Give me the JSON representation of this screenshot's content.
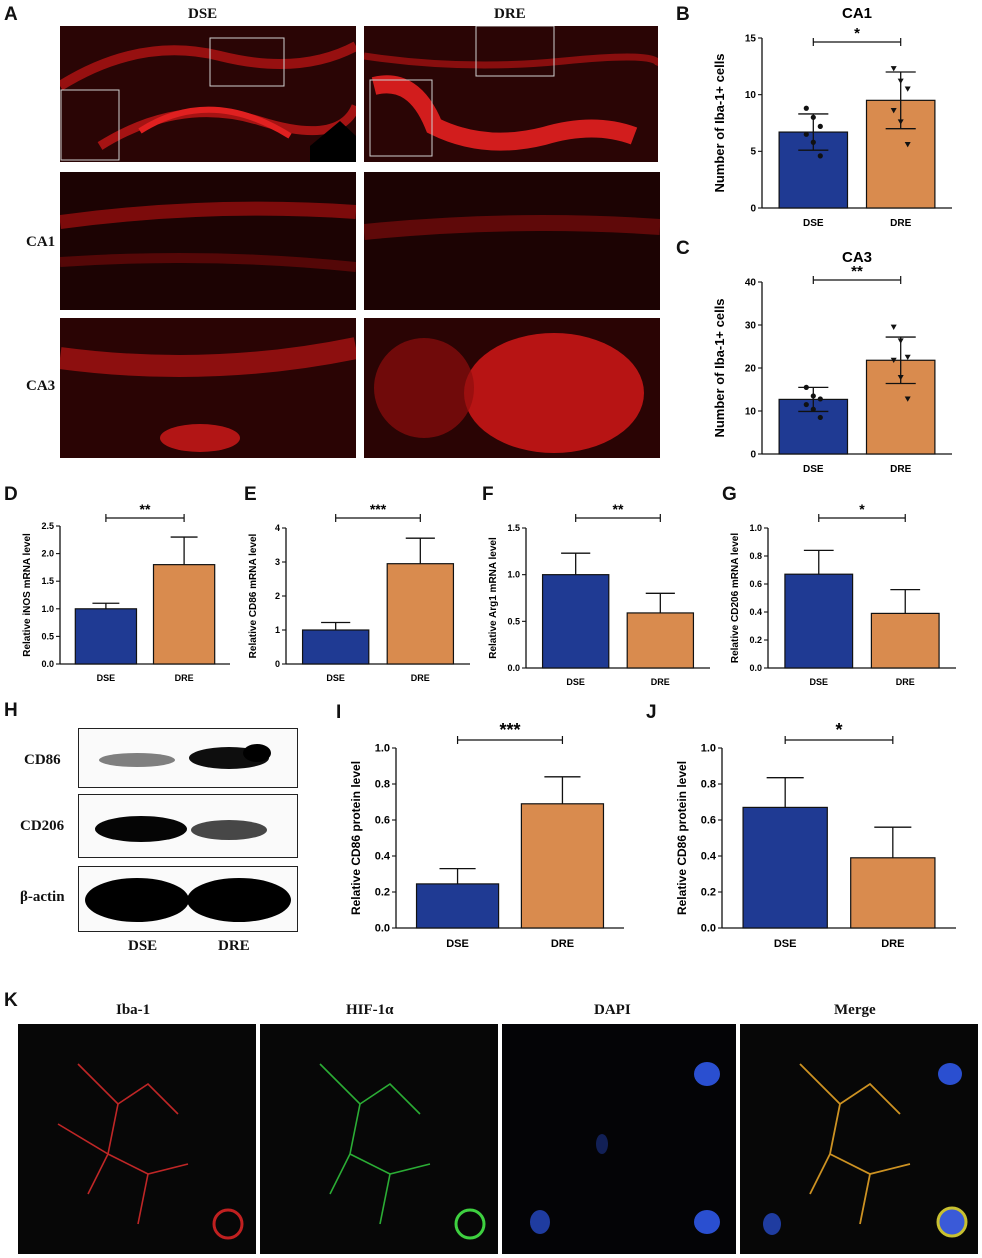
{
  "panels": {
    "A": {
      "letter": "A",
      "col_labels": [
        "DSE",
        "DRE"
      ],
      "row_labels": [
        "CA1",
        "CA3"
      ]
    },
    "H": {
      "letter": "H",
      "bands": [
        "CD86",
        "CD206",
        "β-actin"
      ],
      "lanes": [
        "DSE",
        "DRE"
      ]
    },
    "K": {
      "letter": "K",
      "channels": [
        "Iba-1",
        "HIF-1α",
        "DAPI",
        "Merge"
      ]
    }
  },
  "colors": {
    "dse": "#1f3a93",
    "dre": "#d98b4e",
    "fluor_red": "#e01818",
    "fluor_green": "#2fbf3a",
    "fluor_blue": "#2a4fd0"
  },
  "chart_data": [
    {
      "id": "B",
      "letter": "B",
      "type": "bar",
      "title": "CA1",
      "ylabel": "Number of Iba-1+ cells",
      "xlabel": "",
      "categories": [
        "DSE",
        "DRE"
      ],
      "values": [
        6.7,
        9.5
      ],
      "errors": [
        1.6,
        2.5
      ],
      "ylim": [
        0,
        15
      ],
      "yticks": [
        0,
        5,
        10,
        15
      ],
      "tick_labels": [
        "0",
        "5",
        "10",
        "15"
      ],
      "significance": "*",
      "points": [
        [
          8.8,
          8.0,
          7.2,
          6.5,
          5.8,
          4.6
        ],
        [
          12.3,
          11.2,
          10.5,
          8.6,
          7.6,
          5.6
        ]
      ]
    },
    {
      "id": "C",
      "letter": "C",
      "type": "bar",
      "title": "CA3",
      "ylabel": "Number of Iba-1+ cells",
      "xlabel": "",
      "categories": [
        "DSE",
        "DRE"
      ],
      "values": [
        12.7,
        21.8
      ],
      "errors": [
        2.8,
        5.4
      ],
      "ylim": [
        0,
        40
      ],
      "yticks": [
        0,
        10,
        20,
        30,
        40
      ],
      "tick_labels": [
        "0",
        "10",
        "20",
        "30",
        "40"
      ],
      "significance": "**",
      "points": [
        [
          15.5,
          13.5,
          12.8,
          11.5,
          10.4,
          8.5
        ],
        [
          29.5,
          26.3,
          22.5,
          21.8,
          17.8,
          12.8
        ]
      ]
    },
    {
      "id": "D",
      "letter": "D",
      "type": "bar",
      "title": "",
      "ylabel": "Relative iNOS mRNA level",
      "xlabel": "",
      "categories": [
        "DSE",
        "DRE"
      ],
      "values": [
        1.0,
        1.8
      ],
      "errors": [
        0.1,
        0.5
      ],
      "ylim": [
        0,
        2.5
      ],
      "yticks": [
        0,
        0.5,
        1.0,
        1.5,
        2.0,
        2.5
      ],
      "tick_labels": [
        "0.0",
        "0.5",
        "1.0",
        "1.5",
        "2.0",
        "2.5"
      ],
      "significance": "**"
    },
    {
      "id": "E",
      "letter": "E",
      "type": "bar",
      "title": "",
      "ylabel": "Relative CD86 mRNA level",
      "xlabel": "",
      "categories": [
        "DSE",
        "DRE"
      ],
      "values": [
        1.0,
        2.95
      ],
      "errors": [
        0.22,
        0.75
      ],
      "ylim": [
        0,
        4
      ],
      "yticks": [
        0,
        1,
        2,
        3,
        4
      ],
      "tick_labels": [
        "0",
        "1",
        "2",
        "3",
        "4"
      ],
      "significance": "***"
    },
    {
      "id": "F",
      "letter": "F",
      "type": "bar",
      "title": "",
      "ylabel": "Relative Arg1 mRNA level",
      "xlabel": "",
      "categories": [
        "DSE",
        "DRE"
      ],
      "values": [
        1.0,
        0.59
      ],
      "errors": [
        0.23,
        0.21
      ],
      "ylim": [
        0,
        1.5
      ],
      "yticks": [
        0,
        0.5,
        1.0,
        1.5
      ],
      "tick_labels": [
        "0.0",
        "0.5",
        "1.0",
        "1.5"
      ],
      "significance": "**"
    },
    {
      "id": "G",
      "letter": "G",
      "type": "bar",
      "title": "",
      "ylabel": "Relative CD206 mRNA level",
      "xlabel": "",
      "categories": [
        "DSE",
        "DRE"
      ],
      "values": [
        0.67,
        0.39
      ],
      "errors": [
        0.17,
        0.17
      ],
      "ylim": [
        0,
        1.0
      ],
      "yticks": [
        0,
        0.2,
        0.4,
        0.6,
        0.8,
        1.0
      ],
      "tick_labels": [
        "0.0",
        "0.2",
        "0.4",
        "0.6",
        "0.8",
        "1.0"
      ],
      "significance": "*"
    },
    {
      "id": "I",
      "letter": "I",
      "type": "bar",
      "title": "",
      "ylabel": "Relative CD86 protein level",
      "xlabel": "",
      "categories": [
        "DSE",
        "DRE"
      ],
      "values": [
        0.245,
        0.69
      ],
      "errors": [
        0.085,
        0.15
      ],
      "ylim": [
        0,
        1.0
      ],
      "yticks": [
        0,
        0.2,
        0.4,
        0.6,
        0.8,
        1.0
      ],
      "tick_labels": [
        "0.0",
        "0.2",
        "0.4",
        "0.6",
        "0.8",
        "1.0"
      ],
      "significance": "***"
    },
    {
      "id": "J",
      "letter": "J",
      "type": "bar",
      "title": "",
      "ylabel": "Relative CD86 protein level",
      "xlabel": "",
      "categories": [
        "DSE",
        "DRE"
      ],
      "values": [
        0.67,
        0.39
      ],
      "errors": [
        0.165,
        0.17
      ],
      "ylim": [
        0,
        1.0
      ],
      "yticks": [
        0,
        0.2,
        0.4,
        0.6,
        0.8,
        1.0
      ],
      "tick_labels": [
        "0.0",
        "0.2",
        "0.4",
        "0.6",
        "0.8",
        "1.0"
      ],
      "significance": "*"
    }
  ]
}
